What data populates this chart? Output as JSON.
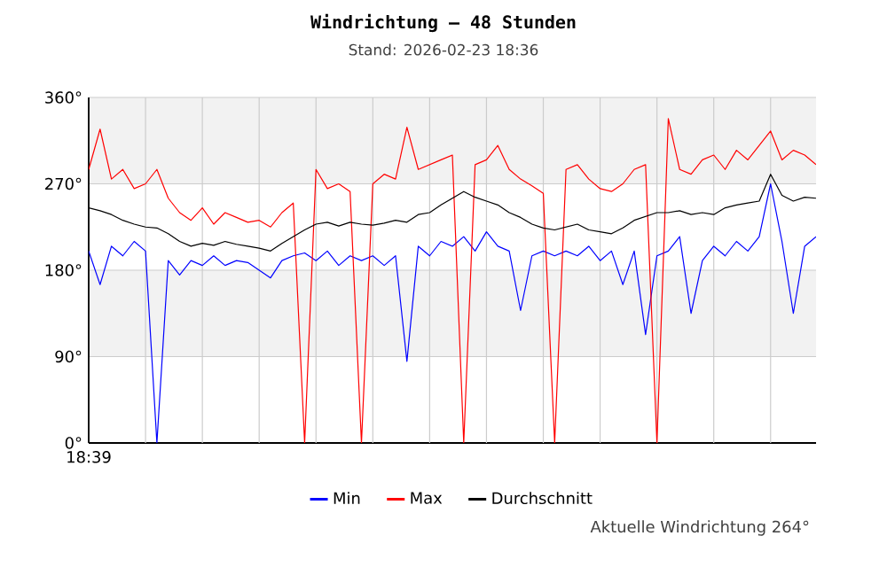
{
  "chart_data": {
    "type": "line",
    "title": "Windrichtung – 48 Stunden",
    "subtitle": "Stand: 2026-02-23 18:36",
    "annotations": [
      "Aktuelle Windrichtung 264°"
    ],
    "categories": [
      "18:39",
      null,
      null,
      null,
      null,
      null,
      null,
      null,
      null,
      null,
      null,
      null,
      null,
      null,
      null,
      null,
      null,
      null,
      null,
      null,
      null,
      null,
      null,
      null,
      null,
      null,
      null,
      null,
      null,
      null,
      null,
      null,
      null,
      null,
      null,
      null,
      null,
      null,
      null,
      null,
      null,
      null,
      null,
      null,
      null,
      null,
      null,
      null,
      null,
      null,
      null,
      null,
      null,
      null,
      null,
      null,
      null,
      null,
      null,
      null,
      null,
      null,
      null,
      null,
      null
    ],
    "series": [
      {
        "name": "Min",
        "color": "#0000ff",
        "values": [
          200,
          165,
          205,
          195,
          210,
          200,
          0,
          190,
          175,
          190,
          185,
          195,
          185,
          190,
          188,
          180,
          172,
          190,
          195,
          198,
          190,
          200,
          185,
          195,
          190,
          195,
          185,
          195,
          85,
          205,
          195,
          210,
          205,
          215,
          200,
          220,
          205,
          200,
          138,
          195,
          200,
          195,
          200,
          195,
          205,
          190,
          200,
          165,
          200,
          113,
          195,
          200,
          215,
          135,
          190,
          205,
          195,
          210,
          200,
          215,
          270,
          210,
          135,
          205,
          215
        ]
      },
      {
        "name": "Max",
        "color": "#ff0000",
        "values": [
          285,
          327,
          275,
          285,
          265,
          270,
          285,
          255,
          240,
          232,
          245,
          228,
          240,
          235,
          230,
          232,
          225,
          240,
          250,
          0,
          285,
          265,
          270,
          262,
          0,
          270,
          280,
          275,
          329,
          285,
          290,
          295,
          300,
          0,
          290,
          295,
          310,
          285,
          275,
          268,
          260,
          0,
          285,
          290,
          275,
          265,
          262,
          270,
          285,
          290,
          0,
          338,
          285,
          280,
          295,
          300,
          285,
          305,
          295,
          310,
          325,
          295,
          305,
          300,
          290
        ]
      },
      {
        "name": "Durchschnitt",
        "color": "#000000",
        "values": [
          245,
          242,
          238,
          232,
          228,
          225,
          224,
          218,
          210,
          205,
          208,
          206,
          210,
          207,
          205,
          203,
          200,
          208,
          215,
          222,
          228,
          230,
          226,
          230,
          228,
          227,
          229,
          232,
          230,
          238,
          240,
          248,
          255,
          262,
          256,
          252,
          248,
          240,
          235,
          228,
          224,
          222,
          225,
          228,
          222,
          220,
          218,
          224,
          232,
          236,
          240,
          240,
          242,
          238,
          240,
          238,
          245,
          248,
          250,
          252,
          280,
          258,
          252,
          256,
          255
        ]
      }
    ],
    "ylim": [
      0,
      360
    ],
    "yticks": [
      {
        "value": 0,
        "label": "0°"
      },
      {
        "value": 90,
        "label": "90°"
      },
      {
        "value": 180,
        "label": "180°"
      },
      {
        "value": 270,
        "label": "270°"
      },
      {
        "value": 360,
        "label": "360°"
      }
    ],
    "bands": [
      {
        "axis": "y",
        "from": 90,
        "to": 180,
        "color": "#f2f2f2"
      },
      {
        "axis": "y",
        "from": 270,
        "to": 360,
        "color": "#f2f2f2"
      }
    ],
    "grid": true,
    "legend": "bottom",
    "marker": "none",
    "line_style": "solid"
  }
}
